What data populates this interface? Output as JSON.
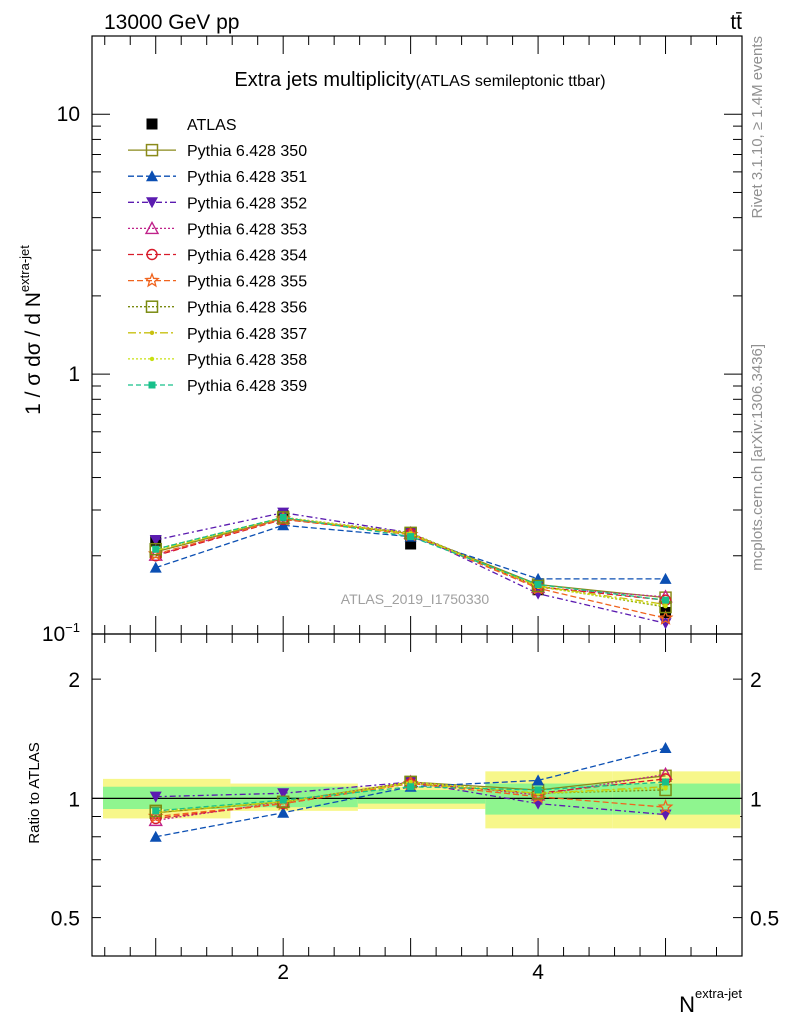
{
  "header": {
    "energy_label": "13000 GeV pp",
    "process_label": "tt̄"
  },
  "side_labels": {
    "rivet": "Rivet 3.1.10, ≥ 1.4M events",
    "mcplots": "mcplots.cern.ch [arXiv:1306.3436]"
  },
  "colors": {
    "ATLAS": "#000000",
    "Pythia 6.428 350": "#8a8a1a",
    "Pythia 6.428 351": "#0b4fb3",
    "Pythia 6.428 352": "#5b1bb0",
    "Pythia 6.428 353": "#c0228a",
    "Pythia 6.428 354": "#d81b2a",
    "Pythia 6.428 355": "#f0641e",
    "Pythia 6.428 356": "#7a8a10",
    "Pythia 6.428 357": "#c8c010",
    "Pythia 6.428 358": "#c8e010",
    "Pythia 6.428 359": "#18c08a",
    "band_inner": "#8ff58f",
    "band_outer": "#f7f78a"
  },
  "chart_data": [
    {
      "type": "line",
      "title": "Extra jets multiplicity",
      "subtitle": "(ATLAS semileptonic ttbar)",
      "watermark": "ATLAS_2019_I1750330",
      "ylabel": "1 / σ dσ / d N",
      "ylabel_sup": "extra-jet",
      "y_scale": "log",
      "ylim": [
        0.1,
        20
      ],
      "xlim": [
        0.5,
        5.6
      ],
      "y_ticks": [
        {
          "value": 10,
          "label": "10"
        },
        {
          "value": 1,
          "label": "1"
        },
        {
          "value": 0.1,
          "label": "10",
          "sup": "−1"
        }
      ],
      "legend_position": "top-left",
      "x": [
        1,
        2,
        3,
        4,
        5
      ],
      "series": [
        {
          "name": "ATLAS",
          "marker": "square-filled",
          "dash": "none",
          "values": [
            0.228,
            0.285,
            0.222,
            0.148,
            0.121
          ]
        },
        {
          "name": "Pythia 6.428 350",
          "marker": "square-open",
          "dash": "solid",
          "values": [
            0.207,
            0.278,
            0.243,
            0.155,
            0.138
          ]
        },
        {
          "name": "Pythia 6.428 351",
          "marker": "triangle-up-filled",
          "dash": "6,3",
          "values": [
            0.18,
            0.262,
            0.237,
            0.163,
            0.163
          ]
        },
        {
          "name": "Pythia 6.428 352",
          "marker": "triangle-down-filled",
          "dash": "6,3,2,3",
          "values": [
            0.23,
            0.293,
            0.245,
            0.143,
            0.11
          ]
        },
        {
          "name": "Pythia 6.428 353",
          "marker": "triangle-up-open",
          "dash": "2,2",
          "values": [
            0.201,
            0.279,
            0.244,
            0.151,
            0.139
          ]
        },
        {
          "name": "Pythia 6.428 354",
          "marker": "circle-open",
          "dash": "6,3",
          "values": [
            0.2,
            0.276,
            0.243,
            0.152,
            0.135
          ]
        },
        {
          "name": "Pythia 6.428 355",
          "marker": "star-open",
          "dash": "6,3",
          "values": [
            0.203,
            0.277,
            0.241,
            0.15,
            0.115
          ]
        },
        {
          "name": "Pythia 6.428 356",
          "marker": "square-open",
          "dash": "2,2",
          "values": [
            0.212,
            0.281,
            0.245,
            0.153,
            0.127
          ]
        },
        {
          "name": "Pythia 6.428 357",
          "marker": "dot",
          "dash": "8,3,2,3",
          "values": [
            0.209,
            0.28,
            0.242,
            0.153,
            0.13
          ]
        },
        {
          "name": "Pythia 6.428 358",
          "marker": "dot",
          "dash": "2,2",
          "values": [
            0.21,
            0.281,
            0.244,
            0.152,
            0.128
          ]
        },
        {
          "name": "Pythia 6.428 359",
          "marker": "square-small",
          "dash": "5,3",
          "values": [
            0.212,
            0.281,
            0.237,
            0.155,
            0.135
          ]
        }
      ]
    },
    {
      "type": "line",
      "ylabel": "Ratio to ATLAS",
      "xlabel": "N",
      "xlabel_sup": "extra-jet",
      "y_scale": "log",
      "ylim": [
        0.4,
        2.6
      ],
      "xlim": [
        0.5,
        5.6
      ],
      "x_ticks": [
        2,
        4
      ],
      "y_ticks": [
        {
          "value": 2,
          "label": "2"
        },
        {
          "value": 1,
          "label": "1"
        },
        {
          "value": 0.5,
          "label": "0.5"
        }
      ],
      "bands": {
        "x_edges": [
          0.5,
          1.5,
          2.5,
          3.5,
          4.5,
          5.5
        ],
        "outer_low": [
          0.89,
          0.93,
          0.94,
          0.84,
          0.84
        ],
        "outer_high": [
          1.12,
          1.09,
          1.07,
          1.17,
          1.17
        ],
        "inner_low": [
          0.94,
          0.95,
          0.97,
          0.91,
          0.91
        ],
        "inner_high": [
          1.07,
          1.07,
          1.05,
          1.09,
          1.09
        ]
      },
      "x": [
        1,
        2,
        3,
        4,
        5
      ],
      "series": [
        {
          "name": "Pythia 6.428 350",
          "values": [
            0.92,
            0.98,
            1.1,
            1.05,
            1.14
          ]
        },
        {
          "name": "Pythia 6.428 351",
          "values": [
            0.8,
            0.92,
            1.07,
            1.11,
            1.34
          ]
        },
        {
          "name": "Pythia 6.428 352",
          "values": [
            1.01,
            1.03,
            1.1,
            0.97,
            0.91
          ]
        },
        {
          "name": "Pythia 6.428 353",
          "values": [
            0.88,
            0.98,
            1.1,
            1.02,
            1.15
          ]
        },
        {
          "name": "Pythia 6.428 354",
          "values": [
            0.89,
            0.97,
            1.09,
            1.03,
            1.12
          ]
        },
        {
          "name": "Pythia 6.428 355",
          "values": [
            0.9,
            0.97,
            1.09,
            1.01,
            0.95
          ]
        },
        {
          "name": "Pythia 6.428 356",
          "values": [
            0.93,
            0.98,
            1.1,
            1.03,
            1.05
          ]
        },
        {
          "name": "Pythia 6.428 357",
          "values": [
            0.92,
            0.98,
            1.09,
            1.03,
            1.07
          ]
        },
        {
          "name": "Pythia 6.428 358",
          "values": [
            0.93,
            0.98,
            1.1,
            1.03,
            1.06
          ]
        },
        {
          "name": "Pythia 6.428 359",
          "values": [
            0.93,
            0.99,
            1.07,
            1.05,
            1.1
          ]
        }
      ]
    }
  ]
}
